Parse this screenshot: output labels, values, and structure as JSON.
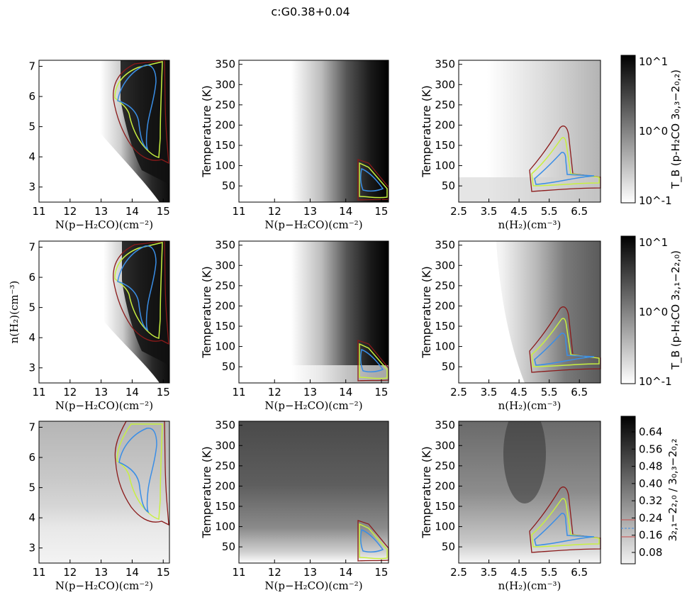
{
  "figure_title": "c:G0.38+0.04",
  "colors": {
    "red": "#8b1a1a",
    "yellow": "#c8f040",
    "blue": "#3a8ee6",
    "frame": "#000000"
  },
  "chart_data": [
    {
      "type": "heatmap",
      "row": 0,
      "col": 0,
      "xlabel": "N(p−H₂CO)(cm⁻²)",
      "ylabel": "",
      "xlim": [
        11,
        15.2
      ],
      "ylim": [
        2.5,
        7.2
      ],
      "xticks": [
        11,
        12,
        13,
        14,
        15
      ],
      "yticks": [
        3,
        4,
        5,
        6,
        7
      ]
    },
    {
      "type": "heatmap",
      "row": 0,
      "col": 1,
      "xlabel": "N(p−H₂CO)(cm⁻²)",
      "ylabel": "Temperature (K)",
      "xlim": [
        11,
        15.2
      ],
      "ylim": [
        10,
        360
      ],
      "xticks": [
        11,
        12,
        13,
        14,
        15
      ],
      "yticks": [
        50,
        100,
        150,
        200,
        250,
        300,
        350
      ]
    },
    {
      "type": "heatmap",
      "row": 0,
      "col": 2,
      "xlabel": "n(H₂)(cm⁻³)",
      "ylabel": "Temperature (K)",
      "xlim": [
        2.5,
        7.2
      ],
      "ylim": [
        10,
        360
      ],
      "xticks": [
        2.5,
        3.5,
        4.5,
        5.5,
        6.5
      ],
      "yticks": [
        50,
        100,
        150,
        200,
        250,
        300,
        350
      ]
    },
    {
      "type": "heatmap",
      "row": 1,
      "col": 0,
      "xlabel": "N(p−H₂CO)(cm⁻²)",
      "ylabel": "n(H₂)(cm⁻³)",
      "xlim": [
        11,
        15.2
      ],
      "ylim": [
        2.5,
        7.2
      ],
      "xticks": [
        11,
        12,
        13,
        14,
        15
      ],
      "yticks": [
        3,
        4,
        5,
        6,
        7
      ]
    },
    {
      "type": "heatmap",
      "row": 1,
      "col": 1,
      "xlabel": "N(p−H₂CO)(cm⁻²)",
      "ylabel": "Temperature (K)",
      "xlim": [
        11,
        15.2
      ],
      "ylim": [
        10,
        360
      ],
      "xticks": [
        11,
        12,
        13,
        14,
        15
      ],
      "yticks": [
        50,
        100,
        150,
        200,
        250,
        300,
        350
      ]
    },
    {
      "type": "heatmap",
      "row": 1,
      "col": 2,
      "xlabel": "n(H₂)(cm⁻³)",
      "ylabel": "Temperature (K)",
      "xlim": [
        2.5,
        7.2
      ],
      "ylim": [
        10,
        360
      ],
      "xticks": [
        2.5,
        3.5,
        4.5,
        5.5,
        6.5
      ],
      "yticks": [
        50,
        100,
        150,
        200,
        250,
        300,
        350
      ]
    },
    {
      "type": "heatmap",
      "row": 2,
      "col": 0,
      "xlabel": "N(p−H₂CO)(cm⁻²)",
      "ylabel": "",
      "xlim": [
        11,
        15.2
      ],
      "ylim": [
        2.5,
        7.2
      ],
      "xticks": [
        11,
        12,
        13,
        14,
        15
      ],
      "yticks": [
        3,
        4,
        5,
        6,
        7
      ]
    },
    {
      "type": "heatmap",
      "row": 2,
      "col": 1,
      "xlabel": "N(p−H₂CO)(cm⁻²)",
      "ylabel": "Temperature (K)",
      "xlim": [
        11,
        15.2
      ],
      "ylim": [
        10,
        360
      ],
      "xticks": [
        11,
        12,
        13,
        14,
        15
      ],
      "yticks": [
        50,
        100,
        150,
        200,
        250,
        300,
        350
      ]
    },
    {
      "type": "heatmap",
      "row": 2,
      "col": 2,
      "xlabel": "n(H₂)(cm⁻³)",
      "ylabel": "Temperature (K)",
      "xlim": [
        2.5,
        7.2
      ],
      "ylim": [
        10,
        360
      ],
      "xticks": [
        2.5,
        3.5,
        4.5,
        5.5,
        6.5
      ],
      "yticks": [
        50,
        100,
        150,
        200,
        250,
        300,
        350
      ]
    }
  ],
  "colorbars": [
    {
      "row": 0,
      "scale": "log",
      "ticks": [
        "10^1",
        "10^0",
        "10^-1"
      ],
      "label": "T_B (p-H₂CO 3₀,₃−2₀,₂)"
    },
    {
      "row": 1,
      "scale": "log",
      "ticks": [
        "10^1",
        "10^0",
        "10^-1"
      ],
      "label": "T_B (p-H₂CO 3₂,₁−2₂,₀)"
    },
    {
      "row": 2,
      "scale": "linear",
      "ticks": [
        "0.64",
        "0.56",
        "0.48",
        "0.40",
        "0.32",
        "0.24",
        "0.16",
        "0.08"
      ],
      "label": "3₂,₁−2₂,₀ / 3₀,₃−2₀,₂"
    }
  ]
}
